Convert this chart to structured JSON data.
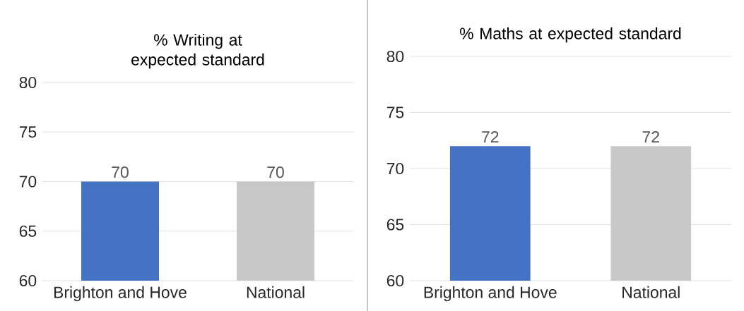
{
  "chart_data": [
    {
      "type": "bar",
      "title": "% Writing at expected standard",
      "categories": [
        "Brighton and Hove",
        "National"
      ],
      "values": [
        70,
        70
      ],
      "colors": [
        "#4472c4",
        "#c8c8c8"
      ],
      "ylim": [
        60,
        80
      ],
      "yticks": [
        60,
        65,
        70,
        75,
        80
      ],
      "grid": "y",
      "data_labels": true
    },
    {
      "type": "bar",
      "title": "% Maths at expected standard",
      "categories": [
        "Brighton and Hove",
        "National"
      ],
      "values": [
        72,
        72
      ],
      "colors": [
        "#4472c4",
        "#c8c8c8"
      ],
      "ylim": [
        60,
        80
      ],
      "yticks": [
        60,
        65,
        70,
        75,
        80
      ],
      "grid": "y",
      "data_labels": true
    }
  ]
}
